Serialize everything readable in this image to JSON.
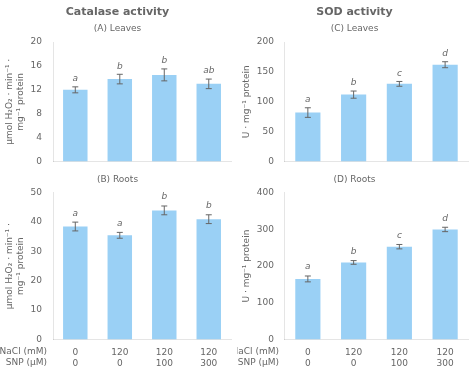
{
  "chart_data": [
    {
      "type": "bar",
      "title": "Catalase activity",
      "subtitle": "(A) Leaves",
      "ylabel": "μmol H₂O₂ · min⁻¹ ·\nmg⁻¹ protein",
      "categories": [
        [
          "0",
          "0"
        ],
        [
          "120",
          "0"
        ],
        [
          "120",
          "100"
        ],
        [
          "120",
          "300"
        ]
      ],
      "xlabel": [
        "NaCl (mM)",
        "SNP (μM)"
      ],
      "values": [
        12.0,
        13.8,
        14.5,
        13.0
      ],
      "errors": [
        0.5,
        0.8,
        1.0,
        0.8
      ],
      "annotations": [
        "a",
        "b",
        "b",
        "ab"
      ],
      "ylim": [
        0,
        20
      ],
      "yticks": [
        0,
        4,
        8,
        12,
        16,
        20
      ],
      "grid": false,
      "tick_labels": "y"
    },
    {
      "type": "bar",
      "subtitle": "(B) Roots",
      "ylabel": "μmol H₂O₂ · min⁻¹ ·\nmg⁻¹ protein",
      "categories": [
        [
          "0",
          "0"
        ],
        [
          "120",
          "0"
        ],
        [
          "120",
          "100"
        ],
        [
          "120",
          "300"
        ]
      ],
      "xlabel": [
        "NaCl (mM)",
        "SNP (μM)"
      ],
      "values": [
        38.5,
        35.5,
        44.0,
        41.0
      ],
      "errors": [
        1.5,
        1.0,
        1.5,
        1.5
      ],
      "annotations": [
        "a",
        "a",
        "b",
        "b"
      ],
      "ylim": [
        0,
        50
      ],
      "yticks": [
        0,
        10,
        20,
        30,
        40,
        50
      ],
      "grid": false
    },
    {
      "type": "bar",
      "title": "SOD activity",
      "subtitle": "(C) Leaves",
      "ylabel": "U · mg⁻¹ protein",
      "categories": [
        [
          "0",
          "0"
        ],
        [
          "120",
          "0"
        ],
        [
          "120",
          "100"
        ],
        [
          "120",
          "300"
        ]
      ],
      "xlabel": [
        "NaCl (mM)",
        "SNP (μM)"
      ],
      "values": [
        82,
        112,
        130,
        162
      ],
      "errors": [
        8,
        6,
        4,
        5
      ],
      "annotations": [
        "a",
        "b",
        "c",
        "d"
      ],
      "ylim": [
        0,
        200
      ],
      "yticks": [
        0,
        50,
        100,
        150,
        200
      ],
      "grid": false,
      "tick_labels": "y"
    },
    {
      "type": "bar",
      "subtitle": "(D) Roots",
      "ylabel": "U · mg⁻¹ protein",
      "categories": [
        [
          "0",
          "0"
        ],
        [
          "120",
          "0"
        ],
        [
          "120",
          "100"
        ],
        [
          "120",
          "300"
        ]
      ],
      "xlabel": [
        "NaCl (mM)",
        "SNP (μM)"
      ],
      "values": [
        165,
        210,
        253,
        300
      ],
      "errors": [
        8,
        5,
        6,
        6
      ],
      "annotations": [
        "a",
        "b",
        "c",
        "d"
      ],
      "ylim": [
        0,
        400
      ],
      "yticks": [
        0,
        100,
        200,
        300,
        400
      ],
      "grid": false
    }
  ]
}
